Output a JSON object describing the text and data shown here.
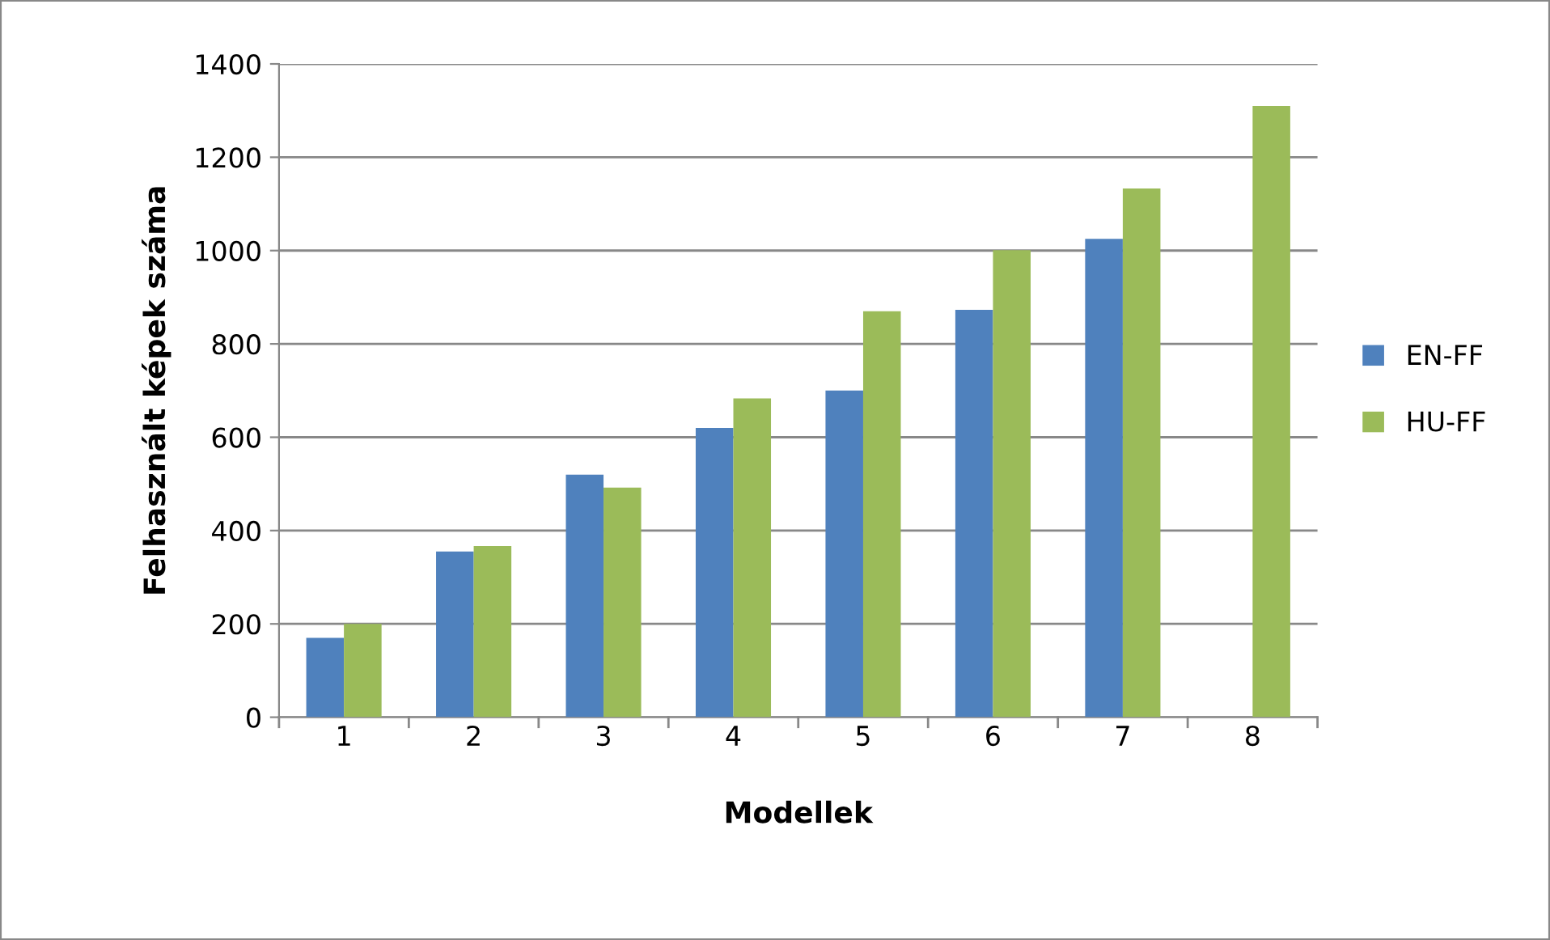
{
  "chart_data": {
    "type": "bar",
    "xlabel": "Modellek",
    "ylabel": "Felhasznált képek száma",
    "categories": [
      "1",
      "2",
      "3",
      "4",
      "5",
      "6",
      "7",
      "8"
    ],
    "series": [
      {
        "name": "EN-FF",
        "color": "#4f81bd",
        "values": [
          170,
          355,
          520,
          620,
          700,
          873,
          1025,
          null
        ]
      },
      {
        "name": "HU-FF",
        "color": "#9bbb59",
        "values": [
          200,
          367,
          492,
          683,
          870,
          1001,
          1133,
          1310
        ]
      }
    ],
    "ylim": [
      0,
      1400
    ],
    "yticks": [
      0,
      200,
      400,
      600,
      800,
      1000,
      1200,
      1400
    ],
    "grid": "y",
    "legend": "right"
  }
}
